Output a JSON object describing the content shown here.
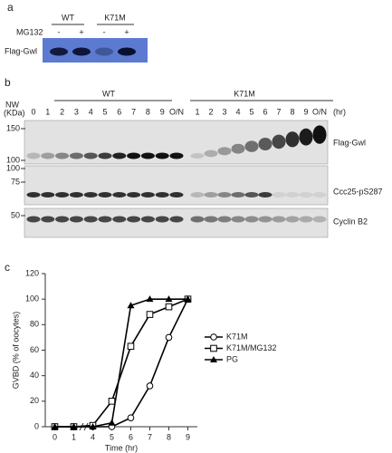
{
  "panel_a": {
    "label": "a",
    "groups": [
      "WT",
      "K71M"
    ],
    "treatment": "MG132",
    "lanes": [
      "-",
      "+",
      "-",
      "+"
    ],
    "blot_label": "Flag-Gwl"
  },
  "panel_b": {
    "label": "b",
    "mw_label": [
      "NW",
      "(KDa)"
    ],
    "groups": [
      "WT",
      "K71M"
    ],
    "lanes": [
      "0",
      "1",
      "2",
      "3",
      "4",
      "5",
      "6",
      "7",
      "8",
      "9",
      "O/N",
      "1",
      "2",
      "3",
      "4",
      "5",
      "6",
      "7",
      "8",
      "9",
      "O/N"
    ],
    "time_unit": "(hr)",
    "blots": [
      {
        "label": "Flag-Gwl",
        "markers": [
          150,
          100
        ]
      },
      {
        "label": "Ccc25-pS287",
        "markers": [
          100,
          75
        ]
      },
      {
        "label": "Cyclin B2",
        "markers": [
          50
        ]
      }
    ]
  },
  "panel_c": {
    "label": "c"
  },
  "chart_data": {
    "type": "line",
    "x_label": "Time (hr)",
    "y_label": "GVBD (% of oocytes)",
    "categories": [
      "0",
      "1",
      "4",
      "5",
      "6",
      "7",
      "8",
      "9"
    ],
    "series": [
      {
        "name": "K71M",
        "color": "#000000",
        "marker": "circle",
        "values": [
          0,
          0,
          0,
          0,
          7,
          32,
          70,
          100
        ]
      },
      {
        "name": "K71M/MG132",
        "color": "#000000",
        "marker": "square",
        "values": [
          0,
          0,
          1,
          20,
          63,
          88,
          94,
          100
        ]
      },
      {
        "name": "PG",
        "color": "#000000",
        "marker": "triangle",
        "values": [
          0,
          0,
          0,
          3,
          95,
          100,
          100,
          100
        ]
      }
    ],
    "ylim": [
      0,
      120
    ],
    "yticks": [
      0,
      20,
      40,
      60,
      80,
      100,
      120
    ]
  }
}
